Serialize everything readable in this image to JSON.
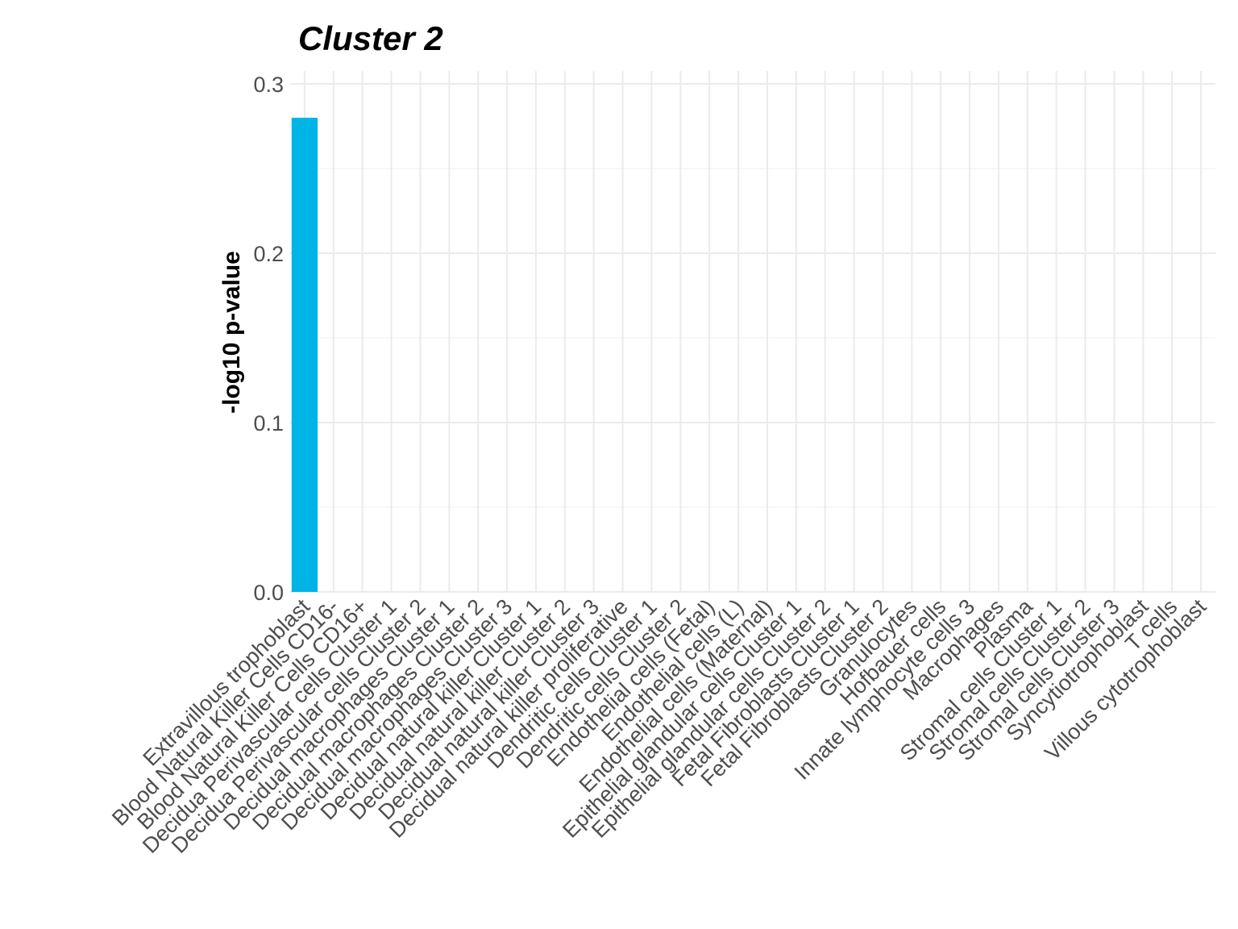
{
  "chart_data": {
    "type": "bar",
    "title": "Cluster  2",
    "xlabel": "",
    "ylabel": "-log10 p-value",
    "ylim": [
      0,
      0.3
    ],
    "yticks": [
      "0.0",
      "0.1",
      "0.2",
      "0.3"
    ],
    "yticks_values": [
      0,
      0.1,
      0.2,
      0.3
    ],
    "grid": true,
    "bar_color": "#00b4e6",
    "categories": [
      "Extravillous trophoblast",
      "Blood Natural Killer Cells CD16-",
      "Blood Natural Killer Cells CD16+",
      "Decidua Perivascular cells Cluster 1",
      "Decidua Perivascular cells Cluster 2",
      "Decidual macrophages Cluster 1",
      "Decidual macrophages Cluster 2",
      "Decidual macrophages Cluster 3",
      "Decidual natural killer Cluster 1",
      "Decidual natural killer Cluster 2",
      "Decidual natural killer Cluster 3",
      "Decidual natural killer proliferative",
      "Dendritic cells Cluster 1",
      "Dendritic cells Cluster 2",
      "Endothelial cells (Fetal)",
      "Endothelial cells (L)",
      "Endothelial cells (Maternal)",
      "Epithelial glandular cells Cluster 1",
      "Epithelial glandular cells Cluster 2",
      "Fetal Fibroblasts Cluster 1",
      "Fetal Fibroblasts Cluster 2",
      "Granulocytes",
      "Hofbauer cells",
      "Innate lymphocyte cells 3",
      "Macrophages",
      "Plasma",
      "Stromal cells Cluster 1",
      "Stromal cells Cluster 2",
      "Stromal cells Cluster 3",
      "Syncytiotrophoblast",
      "T cells",
      "Villous cytotrophoblast"
    ],
    "values": [
      0.28,
      0,
      0,
      0,
      0,
      0,
      0,
      0,
      0,
      0,
      0,
      0,
      0,
      0,
      0,
      0,
      0,
      0,
      0,
      0,
      0,
      0,
      0,
      0,
      0,
      0,
      0,
      0,
      0,
      0,
      0,
      0
    ]
  }
}
